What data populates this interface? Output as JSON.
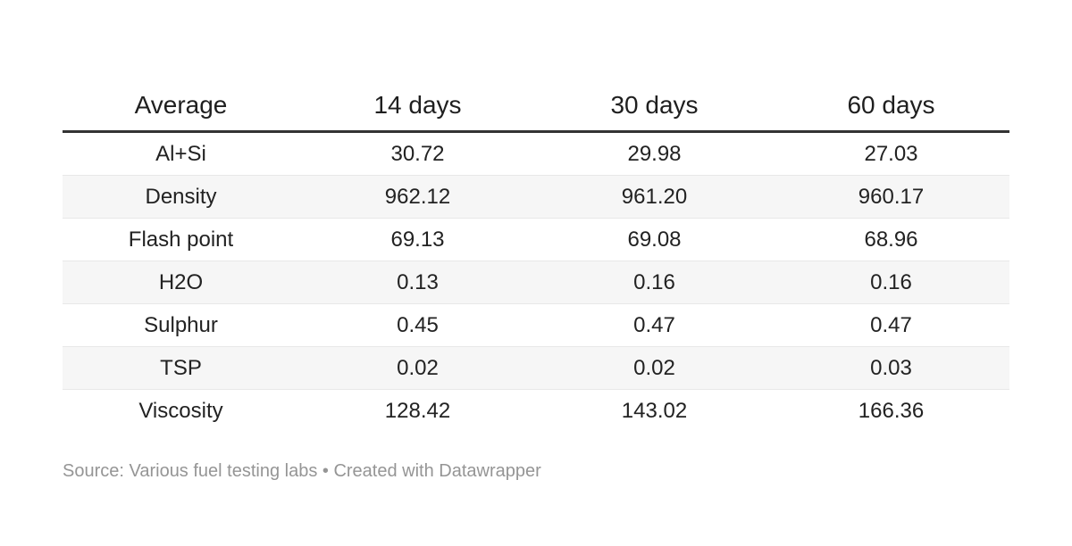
{
  "chart_data": {
    "type": "table",
    "columns": [
      "Average",
      "14 days",
      "30 days",
      "60 days"
    ],
    "rows": [
      {
        "label": "Al+Si",
        "values": [
          "30.72",
          "29.98",
          "27.03"
        ]
      },
      {
        "label": "Density",
        "values": [
          "962.12",
          "961.20",
          "960.17"
        ]
      },
      {
        "label": "Flash point",
        "values": [
          "69.13",
          "69.08",
          "68.96"
        ]
      },
      {
        "label": "H2O",
        "values": [
          "0.13",
          "0.16",
          "0.16"
        ]
      },
      {
        "label": "Sulphur",
        "values": [
          "0.45",
          "0.47",
          "0.47"
        ]
      },
      {
        "label": "TSP",
        "values": [
          "0.02",
          "0.02",
          "0.03"
        ]
      },
      {
        "label": "Viscosity",
        "values": [
          "128.42",
          "143.02",
          "166.36"
        ]
      }
    ],
    "layout": {
      "striped_rows": "even rows shaded",
      "value_alignment": "center",
      "header_rule": "thick dark line under header"
    }
  },
  "footer": {
    "text": "Source: Various fuel testing labs • Created with Datawrapper"
  },
  "colors": {
    "background": "#ffffff",
    "text": "#222222",
    "header_rule": "#333333",
    "row_stripe": "#f6f6f6",
    "row_divider": "#e8e8e8",
    "footer_text": "#959595"
  }
}
